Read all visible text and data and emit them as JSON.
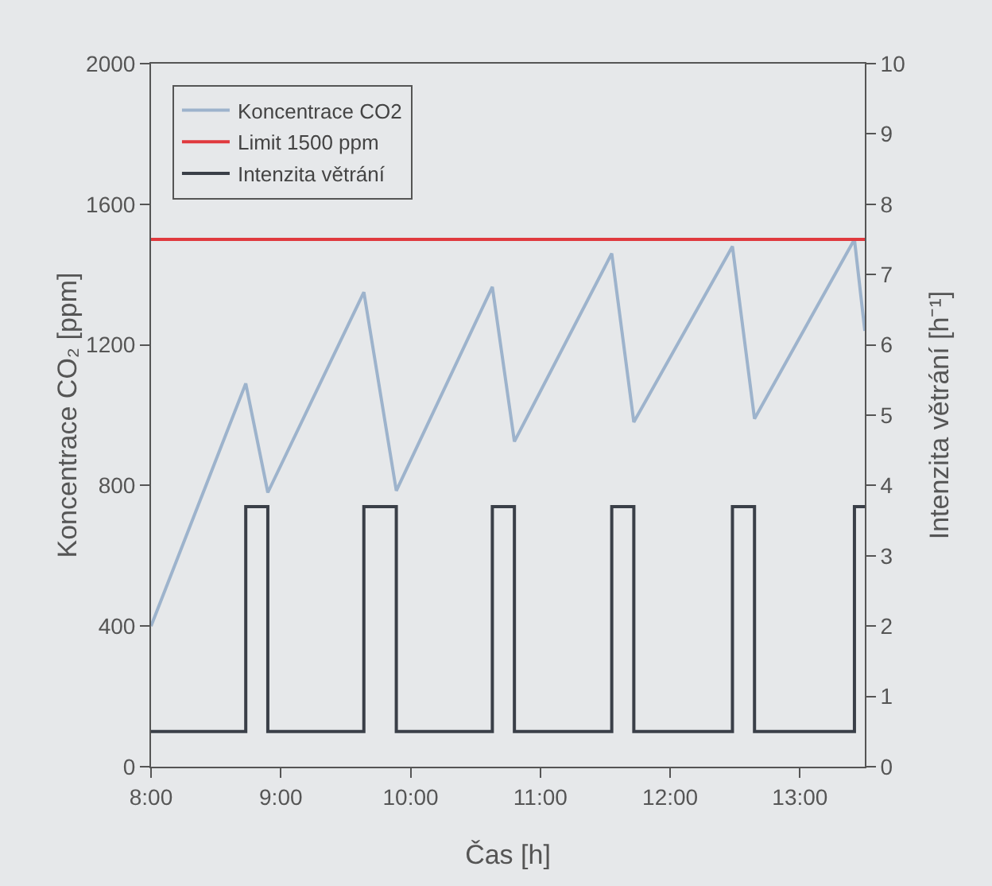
{
  "chart_data": {
    "type": "line",
    "xlabel": "Čas [h]",
    "ylabel": "Koncentrace CO₂ [ppm]",
    "y2label": "Intenzita větrání [h⁻¹]",
    "xlim": [
      8,
      13.5
    ],
    "xticks": [
      {
        "value": 8,
        "label": "8:00"
      },
      {
        "value": 9,
        "label": "9:00"
      },
      {
        "value": 10,
        "label": "10:00"
      },
      {
        "value": 11,
        "label": "11:00"
      },
      {
        "value": 12,
        "label": "12:00"
      },
      {
        "value": 13,
        "label": "13:00"
      }
    ],
    "ylim": [
      0,
      2000
    ],
    "yticks": [
      0,
      400,
      800,
      1200,
      1600,
      2000
    ],
    "y2lim": [
      0,
      10
    ],
    "y2ticks": [
      0,
      1,
      2,
      3,
      4,
      5,
      6,
      7,
      8,
      9,
      10
    ],
    "grid": false,
    "legend": "top left",
    "marker": "none",
    "line_style": "solid",
    "series": [
      {
        "name": "Koncentrace CO2",
        "color": "#9db3cc",
        "x": [
          8,
          8.73,
          8.9,
          9.64,
          9.89,
          10.63,
          10.8,
          11.55,
          11.72,
          12.48,
          12.65,
          13.42,
          13.5
        ],
        "values": [
          400,
          1090,
          780,
          1350,
          785,
          1365,
          925,
          1460,
          980,
          1480,
          990,
          1500,
          1240
        ]
      },
      {
        "name": "Limit 1500 ppm",
        "color": "#e0393e",
        "x": [
          8,
          13.5
        ],
        "values": [
          1500,
          1500
        ]
      },
      {
        "name": "Intenzita větrání",
        "color": "#3a3f48",
        "axis": "y2",
        "x": [
          8,
          8.73,
          8.73,
          8.9,
          8.9,
          9.64,
          9.64,
          9.89,
          9.89,
          10.63,
          10.63,
          10.8,
          10.8,
          11.55,
          11.55,
          11.72,
          11.72,
          12.48,
          12.48,
          12.65,
          12.65,
          13.42,
          13.42,
          13.5
        ],
        "values": [
          0.5,
          0.5,
          3.7,
          3.7,
          0.5,
          0.5,
          3.7,
          3.7,
          0.5,
          0.5,
          3.7,
          3.7,
          0.5,
          0.5,
          3.7,
          3.7,
          0.5,
          0.5,
          3.7,
          3.7,
          0.5,
          0.5,
          3.7,
          3.7
        ]
      }
    ]
  }
}
